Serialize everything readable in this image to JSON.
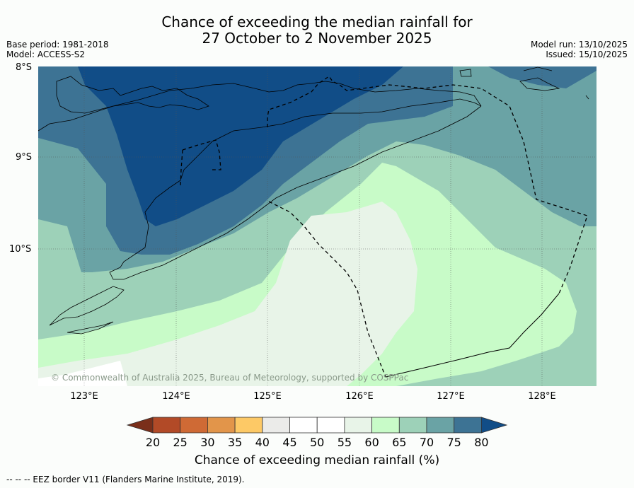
{
  "header": {
    "title_line1": "Chance of exceeding the median rainfall for",
    "title_line2": "27 October to 2 November 2025",
    "base_period": "Base period: 1981-2018",
    "model": "Model: ACCESS-S2",
    "model_run": "Model run: 13/10/2025",
    "issued": "Issued: 15/10/2025"
  },
  "map": {
    "lat_labels": [
      "8°S",
      "9°S",
      "10°S"
    ],
    "lon_labels": [
      "123°E",
      "124°E",
      "125°E",
      "126°E",
      "127°E",
      "128°E"
    ],
    "copyright": "© Commonwealth of Australia 2025, Bureau of Meteorology, supported by COSPPac"
  },
  "colorbar": {
    "ticks": [
      "20",
      "25",
      "30",
      "35",
      "40",
      "45",
      "50",
      "55",
      "60",
      "65",
      "70",
      "75",
      "80"
    ],
    "colors": [
      "#7a2f1a",
      "#b24a27",
      "#cf6a35",
      "#e2954a",
      "#fdc966",
      "#ebebe9",
      "#ffffff",
      "#ffffff",
      "#e8f4e8",
      "#c8fbc8",
      "#9dd1b8",
      "#6aa3a5",
      "#3d7394",
      "#114d87"
    ],
    "label": "Chance of exceeding median rainfall (%)"
  },
  "footer": {
    "eez_note": "--  --  -- EEZ border V11 (Flanders Marine Institute, 2019)."
  }
}
